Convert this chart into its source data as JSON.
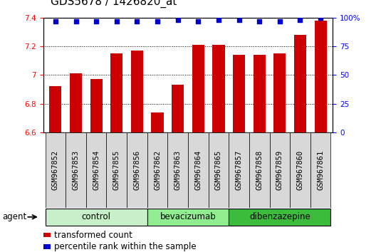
{
  "title": "GDS5678 / 1426820_at",
  "samples": [
    "GSM967852",
    "GSM967853",
    "GSM967854",
    "GSM967855",
    "GSM967856",
    "GSM967862",
    "GSM967863",
    "GSM967864",
    "GSM967865",
    "GSM967857",
    "GSM967858",
    "GSM967859",
    "GSM967860",
    "GSM967861"
  ],
  "red_values": [
    6.92,
    7.01,
    6.97,
    7.15,
    7.17,
    6.74,
    6.93,
    7.21,
    7.21,
    7.14,
    7.14,
    7.15,
    7.28,
    7.38
  ],
  "blue_values": [
    97,
    97,
    97,
    97,
    97,
    97,
    98,
    97,
    98,
    98,
    97,
    97,
    98,
    100
  ],
  "groups": [
    {
      "label": "control",
      "start": 0,
      "end": 5,
      "color": "#c8f0c8"
    },
    {
      "label": "bevacizumab",
      "start": 5,
      "end": 9,
      "color": "#90ee90"
    },
    {
      "label": "dibenzazepine",
      "start": 9,
      "end": 14,
      "color": "#3dbb3d"
    }
  ],
  "ylim_left": [
    6.6,
    7.4
  ],
  "ylim_right": [
    0,
    100
  ],
  "yticks_left": [
    6.6,
    6.8,
    7.0,
    7.2,
    7.4
  ],
  "yticks_right": [
    0,
    25,
    50,
    75,
    100
  ],
  "bar_color": "#cc0000",
  "dot_color": "#0000cc",
  "agent_label": "agent",
  "legend_red": "transformed count",
  "legend_blue": "percentile rank within the sample",
  "title_fontsize": 11,
  "tick_fontsize": 7.5,
  "label_fontsize": 8.5,
  "cell_bg": "#d8d8d8"
}
